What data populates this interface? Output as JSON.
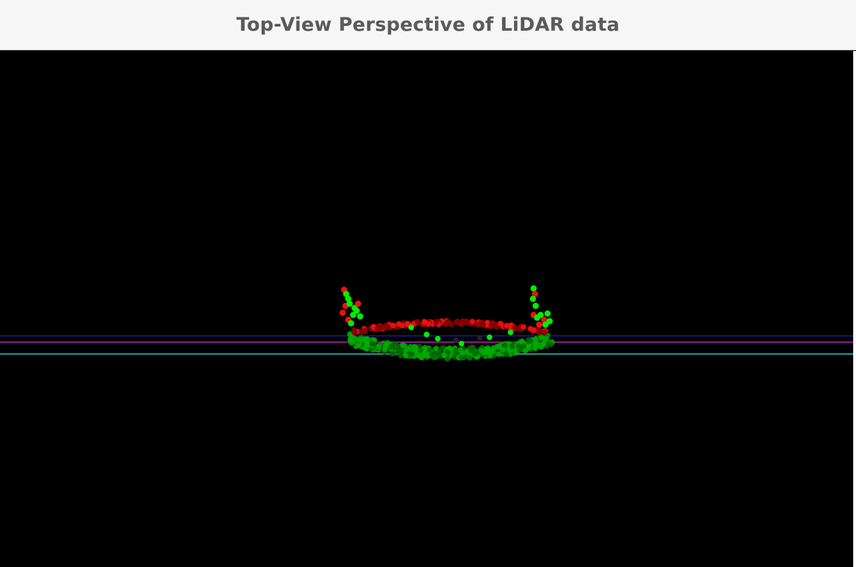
{
  "window": {
    "title": "Top-View Perspective of LiDAR data"
  },
  "view": {
    "background_color": "#000000",
    "colors": {
      "blue_line": "#1a1a9a",
      "magenta_line": "#c020c0",
      "cyan_line": "#30d0c0",
      "point_bright_green": "#00ee00",
      "point_mid_green": "#00aa00",
      "point_dark_green": "#006600",
      "point_red": "#ee1111",
      "point_dark_red": "#880000"
    }
  }
}
